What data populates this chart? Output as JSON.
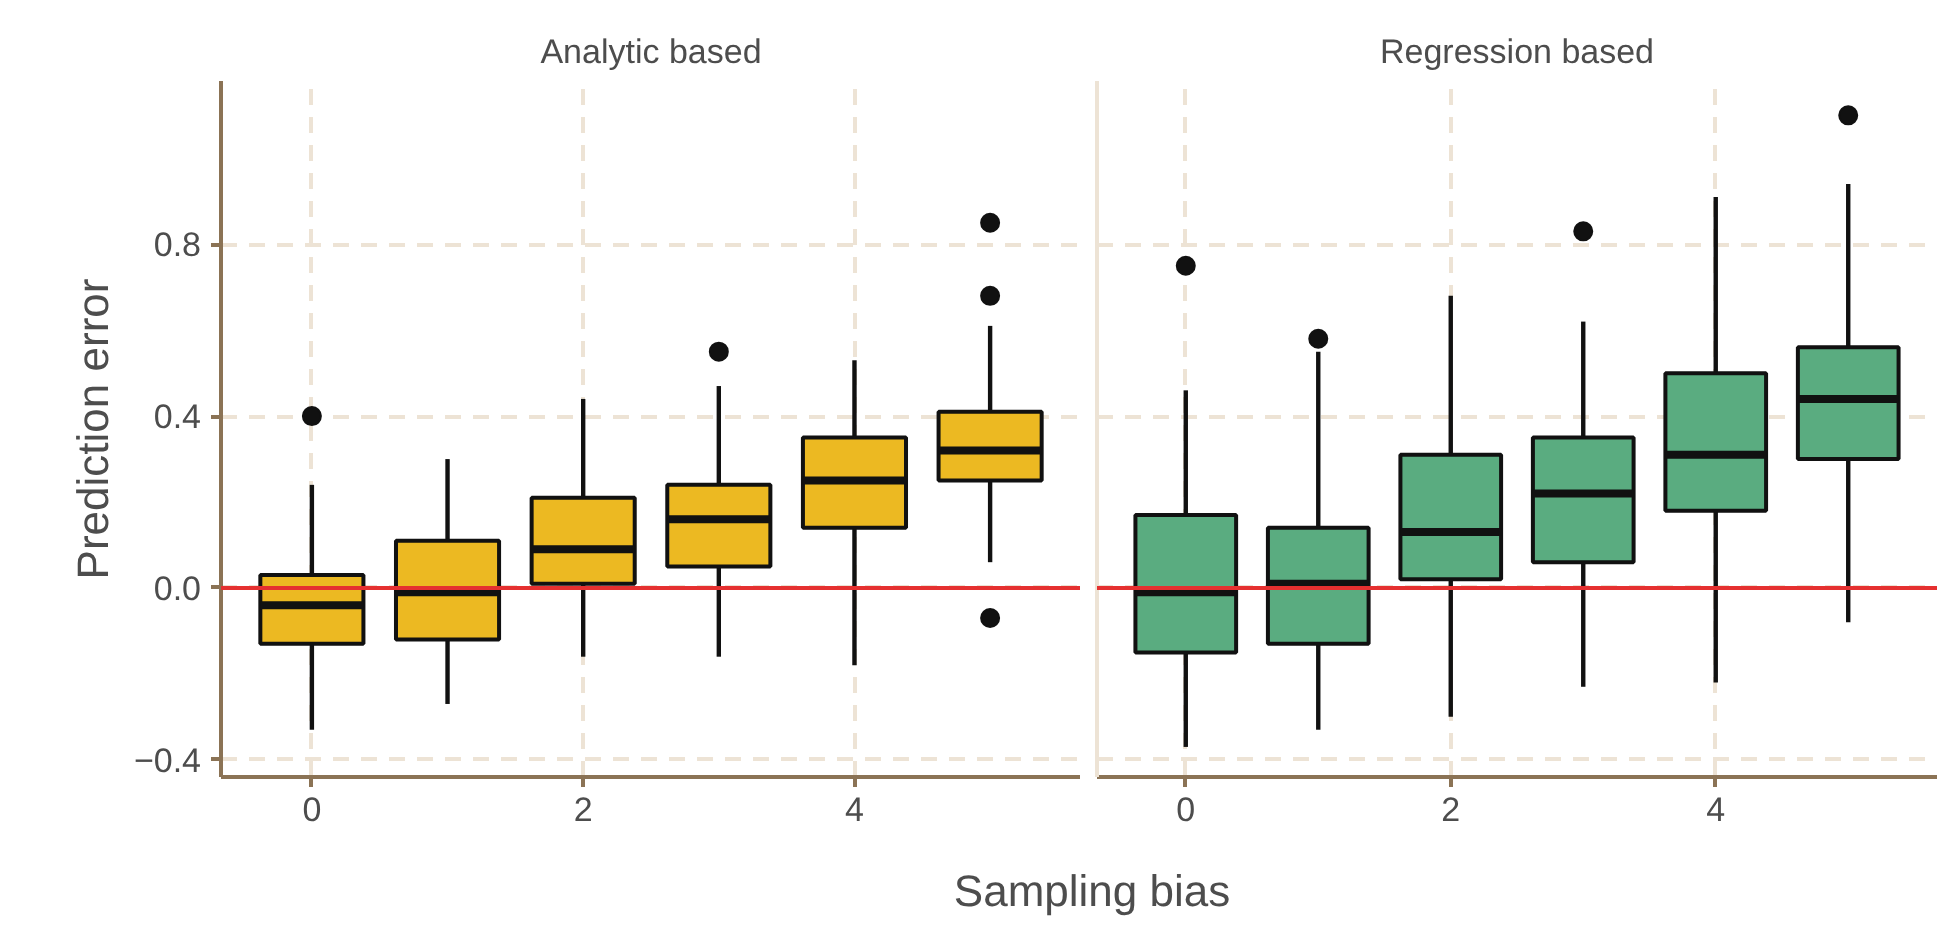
{
  "chart_data": [
    {
      "type": "box",
      "title": "Analytic based",
      "ylabel": "Prediction error",
      "xlabel": "Sampling bias",
      "x": [
        0,
        1,
        2,
        3,
        4,
        5
      ],
      "series": [
        {
          "color": "#ecb922",
          "boxes": [
            {
              "low": -0.33,
              "q1": -0.13,
              "median": -0.04,
              "q3": 0.03,
              "high": 0.24,
              "outliers": [
                0.4
              ]
            },
            {
              "low": -0.27,
              "q1": -0.12,
              "median": -0.01,
              "q3": 0.11,
              "high": 0.3
            },
            {
              "low": -0.16,
              "q1": 0.01,
              "median": 0.09,
              "q3": 0.21,
              "high": 0.44
            },
            {
              "low": -0.16,
              "q1": 0.05,
              "median": 0.16,
              "q3": 0.24,
              "high": 0.47,
              "outliers": [
                0.55
              ]
            },
            {
              "low": -0.18,
              "q1": 0.14,
              "median": 0.25,
              "q3": 0.35,
              "high": 0.53
            },
            {
              "low": 0.06,
              "q1": 0.25,
              "median": 0.32,
              "q3": 0.41,
              "high": 0.61,
              "outliers": [
                0.85,
                0.68,
                -0.07
              ]
            }
          ]
        }
      ],
      "xlim": [
        -0.67,
        5.67
      ],
      "xticks": [
        0,
        2,
        4
      ],
      "ylim": [
        -0.44,
        1.18
      ],
      "yticks": [
        {
          "value": -0.4,
          "label": "−0.4"
        },
        {
          "value": 0,
          "label": "0.0"
        },
        {
          "value": 0.4,
          "label": "0.4"
        },
        {
          "value": 0.8,
          "label": "0.8"
        }
      ],
      "ref_lines": [
        {
          "axis": "y",
          "value": 0,
          "color": "#e53030"
        }
      ],
      "grid": true
    },
    {
      "type": "box",
      "title": "Regression based",
      "x": [
        0,
        1,
        2,
        3,
        4,
        5
      ],
      "series": [
        {
          "color": "#5aac80",
          "boxes": [
            {
              "low": -0.37,
              "q1": -0.15,
              "median": -0.01,
              "q3": 0.17,
              "high": 0.46,
              "outliers": [
                0.75
              ]
            },
            {
              "low": -0.33,
              "q1": -0.13,
              "median": 0.01,
              "q3": 0.14,
              "high": 0.55,
              "outliers": [
                0.58
              ]
            },
            {
              "low": -0.3,
              "q1": 0.02,
              "median": 0.13,
              "q3": 0.31,
              "high": 0.68
            },
            {
              "low": -0.23,
              "q1": 0.06,
              "median": 0.22,
              "q3": 0.35,
              "high": 0.62,
              "outliers": [
                0.83
              ]
            },
            {
              "low": -0.22,
              "q1": 0.18,
              "median": 0.31,
              "q3": 0.5,
              "high": 0.91
            },
            {
              "low": -0.08,
              "q1": 0.3,
              "median": 0.44,
              "q3": 0.56,
              "high": 0.94,
              "outliers": [
                1.1
              ]
            }
          ]
        }
      ],
      "xlim": [
        -0.67,
        5.67
      ],
      "xticks": [
        0,
        2,
        4
      ],
      "ylim": [
        -0.44,
        1.18
      ],
      "yticks": [
        -0.4,
        0,
        0.4,
        0.8
      ],
      "ref_lines": [
        {
          "axis": "y",
          "value": 0,
          "color": "#e53030"
        }
      ],
      "grid": true,
      "tick_labels": "x"
    }
  ]
}
